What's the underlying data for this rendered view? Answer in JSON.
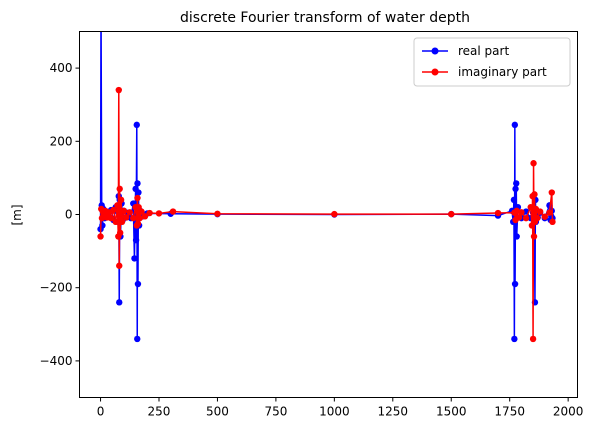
{
  "chart_data": {
    "type": "line",
    "title": "discrete Fourier transform of water depth",
    "xlabel": "",
    "ylabel": "[m]",
    "xlim": [
      -90,
      2040
    ],
    "ylim": [
      -500,
      500
    ],
    "x_ticks": [
      0,
      250,
      500,
      750,
      1000,
      1250,
      1500,
      1750,
      2000
    ],
    "y_ticks": [
      -400,
      -200,
      0,
      200,
      400
    ],
    "grid": false,
    "legend_position": "top-right",
    "series": [
      {
        "name": "real part",
        "color": "#0000ff",
        "x": [
          0,
          2,
          5,
          8,
          12,
          18,
          25,
          35,
          45,
          55,
          65,
          70,
          75,
          78,
          80,
          82,
          85,
          90,
          95,
          100,
          110,
          120,
          130,
          140,
          145,
          150,
          152,
          155,
          157,
          158,
          160,
          162,
          165,
          170,
          180,
          200,
          300,
          500,
          1000,
          1500,
          1700,
          1760,
          1765,
          1768,
          1770,
          1772,
          1773,
          1775,
          1778,
          1780,
          1785,
          1800,
          1820,
          1840,
          1850,
          1855,
          1858,
          1860,
          1862,
          1865,
          1870,
          1880,
          1900,
          1920,
          1925,
          1928,
          1930,
          1933
        ],
        "y": [
          -40,
          580,
          25,
          -30,
          15,
          -10,
          8,
          -6,
          12,
          -15,
          20,
          10,
          -20,
          50,
          -240,
          40,
          -60,
          30,
          -15,
          10,
          -8,
          5,
          -10,
          30,
          -120,
          70,
          -70,
          245,
          -340,
          85,
          -190,
          60,
          -30,
          10,
          -5,
          3,
          2,
          1,
          0,
          1,
          -3,
          10,
          -20,
          40,
          -340,
          245,
          -190,
          70,
          85,
          -60,
          20,
          -10,
          8,
          -10,
          5,
          15,
          -240,
          40,
          -20,
          10,
          -8,
          5,
          -10,
          25,
          -15,
          -5,
          10,
          -10
        ]
      },
      {
        "name": "imaginary part",
        "color": "#ff0000",
        "x": [
          0,
          3,
          6,
          10,
          15,
          20,
          28,
          35,
          45,
          55,
          65,
          72,
          76,
          78,
          80,
          82,
          84,
          88,
          92,
          100,
          110,
          125,
          140,
          150,
          155,
          158,
          160,
          163,
          168,
          175,
          190,
          210,
          250,
          310,
          500,
          1000,
          1500,
          1700,
          1770,
          1775,
          1780,
          1790,
          1800,
          1820,
          1840,
          1845,
          1848,
          1850,
          1852,
          1854,
          1856,
          1858,
          1862,
          1868,
          1880,
          1900,
          1920,
          1930,
          1933
        ],
        "y": [
          -60,
          15,
          -10,
          8,
          -6,
          10,
          -8,
          6,
          -10,
          12,
          -20,
          25,
          -60,
          340,
          -140,
          70,
          -50,
          40,
          -20,
          10,
          -8,
          6,
          -10,
          20,
          -30,
          45,
          -25,
          20,
          -10,
          8,
          -5,
          4,
          3,
          8,
          2,
          1,
          1,
          4,
          5,
          -15,
          10,
          -8,
          6,
          -10,
          20,
          -30,
          50,
          -340,
          140,
          -60,
          55,
          -20,
          15,
          -10,
          8,
          -6,
          5,
          60,
          -20
        ]
      }
    ]
  }
}
